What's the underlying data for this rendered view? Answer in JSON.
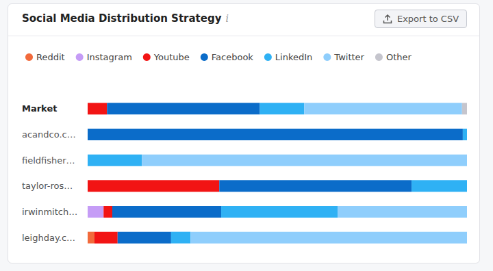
{
  "header": {
    "info": "i",
    "button": "Export to CSV"
  },
  "chart_data": {
    "type": "bar",
    "title": "Social Media Distribution Strategy",
    "orientation": "horizontal",
    "stacked": true,
    "grid": false,
    "legend": "top-left",
    "tick_labels": "y",
    "xlim": [
      0,
      100
    ],
    "categories": [
      "Market",
      "acandco.c…",
      "fieldfisher…",
      "taylor-ros…",
      "irwinmitch…",
      "leighday.c…"
    ],
    "series": [
      {
        "name": "Reddit",
        "color": "#f26a3b",
        "values": [
          0,
          0,
          0,
          0,
          0,
          1.8
        ]
      },
      {
        "name": "Instagram",
        "color": "#c59cf6",
        "values": [
          0,
          0,
          0,
          0,
          4.2,
          0
        ]
      },
      {
        "name": "Youtube",
        "color": "#f21414",
        "values": [
          5.1,
          0,
          0,
          34.7,
          2.3,
          6.1
        ]
      },
      {
        "name": "Facebook",
        "color": "#0b6cc9",
        "values": [
          40.3,
          98.9,
          0,
          50.7,
          28.7,
          14.1
        ]
      },
      {
        "name": "LinkedIn",
        "color": "#2fb1f4",
        "values": [
          11.7,
          1.1,
          14.3,
          14.6,
          30.7,
          5.1
        ]
      },
      {
        "name": "Twitter",
        "color": "#8fcefc",
        "values": [
          41.6,
          0,
          85.7,
          0,
          34.1,
          72.9
        ]
      },
      {
        "name": "Other",
        "color": "#c5c5cd",
        "values": [
          1.3,
          0,
          0,
          0,
          0,
          0
        ]
      }
    ]
  }
}
